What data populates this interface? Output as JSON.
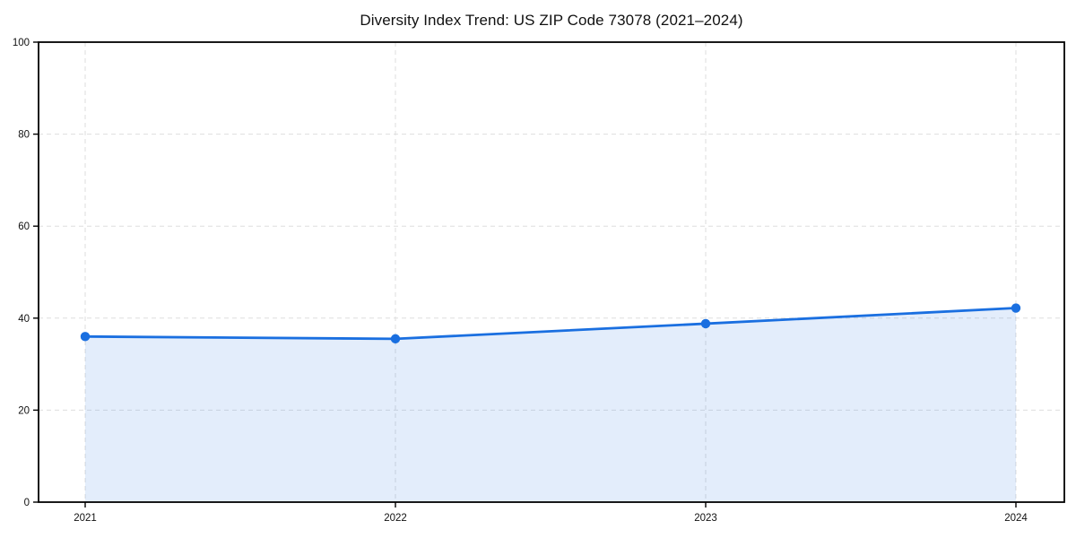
{
  "title": "Diversity Index Trend: US ZIP Code 73078 (2021–2024)",
  "chart_data": {
    "type": "area",
    "title": "Diversity Index Trend: US ZIP Code 73078 (2021–2024)",
    "categories": [
      "2021",
      "2022",
      "2023",
      "2024"
    ],
    "series": [
      {
        "name": "Diversity Index",
        "values": [
          36,
          35.5,
          38.8,
          42.2
        ]
      }
    ],
    "xlabel": "",
    "ylabel": "",
    "ylim": [
      0,
      100
    ],
    "yticks": [
      0,
      20,
      40,
      60,
      80,
      100
    ],
    "grid": "dashed",
    "legend_position": "none",
    "colors": {
      "line": "#1a6fe0",
      "marker": "#1a6fe0",
      "area_fill": "#1a6fe0",
      "area_fill_opacity": "0.12",
      "gridline": "#dedede",
      "axis_border": "#000000",
      "text": "#111111",
      "background": "#ffffff"
    }
  }
}
